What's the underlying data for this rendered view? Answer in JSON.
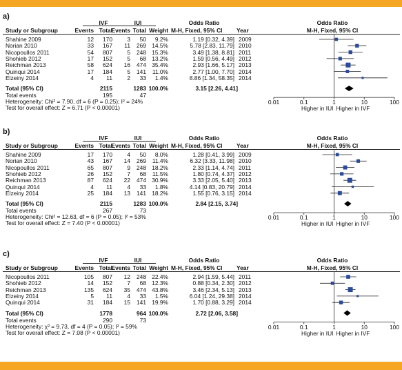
{
  "labels": {
    "ivf": "IVF",
    "iui": "IUI",
    "odds_ratio": "Odds Ratio",
    "study": "Study or Subgroup",
    "events": "Events",
    "total": "Total",
    "weight": "Weight",
    "method": "M-H, Fixed, 95% CI",
    "year": "Year",
    "total_events": "Total events",
    "higher_iui": "Higher in IUI",
    "higher_ivf": "Higher in IVF"
  },
  "colors": {
    "band": "#f5a623",
    "square": "#2a4a9b",
    "line": "#222222"
  },
  "chart_data": [
    {
      "type": "forest",
      "panel_label": "a)",
      "axis": {
        "scale": "log",
        "ticks": [
          "0.01",
          "0.1",
          "1",
          "10",
          "100"
        ],
        "ylim": [
          0.01,
          100
        ]
      },
      "studies": [
        {
          "name": "Shahine 2009",
          "ivf_events": "12",
          "ivf_total": "170",
          "iui_events": "3",
          "iui_total": "50",
          "weight": "9.2%",
          "ci_text": "1.19 [0.32, 4.39]",
          "year": "2009",
          "or": 1.19,
          "lo": 0.32,
          "hi": 4.39
        },
        {
          "name": "Norian 2010",
          "ivf_events": "33",
          "ivf_total": "167",
          "iui_events": "11",
          "iui_total": "269",
          "weight": "14.5%",
          "ci_text": "5.78 [2.83, 11.79]",
          "year": "2010",
          "or": 5.78,
          "lo": 2.83,
          "hi": 11.79
        },
        {
          "name": "Nicopoullos 2011",
          "ivf_events": "54",
          "ivf_total": "807",
          "iui_events": "5",
          "iui_total": "248",
          "weight": "15.3%",
          "ci_text": "3.49 [1.38, 8.81]",
          "year": "2011",
          "or": 3.49,
          "lo": 1.38,
          "hi": 8.81
        },
        {
          "name": "Shohieb 2012",
          "ivf_events": "17",
          "ivf_total": "152",
          "iui_events": "5",
          "iui_total": "68",
          "weight": "13.2%",
          "ci_text": "1.59 [0.56, 4.49]",
          "year": "2012",
          "or": 1.59,
          "lo": 0.56,
          "hi": 4.49
        },
        {
          "name": "Reichman 2013",
          "ivf_events": "58",
          "ivf_total": "624",
          "iui_events": "16",
          "iui_total": "474",
          "weight": "35.4%",
          "ci_text": "2.93 [1.66, 5.17]",
          "year": "2013",
          "or": 2.93,
          "lo": 1.66,
          "hi": 5.17
        },
        {
          "name": "Quinqui 2014",
          "ivf_events": "17",
          "ivf_total": "184",
          "iui_events": "5",
          "iui_total": "141",
          "weight": "11.0%",
          "ci_text": "2.77 [1.00, 7.70]",
          "year": "2014",
          "or": 2.77,
          "lo": 1.0,
          "hi": 7.7
        },
        {
          "name": "Elzeiny 2014",
          "ivf_events": "4",
          "ivf_total": "11",
          "iui_events": "2",
          "iui_total": "33",
          "weight": "1.4%",
          "ci_text": "8.86 [1.34, 58.35]",
          "year": "2014",
          "or": 8.86,
          "lo": 1.34,
          "hi": 58.35
        }
      ],
      "overall": {
        "label": "Total (95% CI)",
        "ivf_total": "2115",
        "iui_total": "1283",
        "weight": "100.0%",
        "ci_text": "3.15 [2.26, 4.41]",
        "or": 3.15,
        "lo": 2.26,
        "hi": 4.41
      },
      "total_events": {
        "ivf": "195",
        "iui": "47"
      },
      "heterogeneity": "Heterogeneity: Chi² = 7.90, df = 6 (P = 0.25); I² = 24%",
      "overall_effect": "Test for overall effect: Z = 6.71 (P < 0.00001)"
    },
    {
      "type": "forest",
      "panel_label": "b)",
      "axis": {
        "scale": "log",
        "ticks": [
          "0.01",
          "0.1",
          "1",
          "10",
          "100"
        ],
        "ylim": [
          0.01,
          100
        ]
      },
      "studies": [
        {
          "name": "Shahine 2009",
          "ivf_events": "17",
          "ivf_total": "170",
          "iui_events": "4",
          "iui_total": "50",
          "weight": "8.0%",
          "ci_text": "1.28 [0.41, 3.99]",
          "year": "2009",
          "or": 1.28,
          "lo": 0.41,
          "hi": 3.99
        },
        {
          "name": "Norian 2010",
          "ivf_events": "43",
          "ivf_total": "167",
          "iui_events": "14",
          "iui_total": "269",
          "weight": "11.4%",
          "ci_text": "6.32 [3.33, 11.98]",
          "year": "2010",
          "or": 6.32,
          "lo": 3.33,
          "hi": 11.98
        },
        {
          "name": "Nicopoullos 2011",
          "ivf_events": "65",
          "ivf_total": "807",
          "iui_events": "9",
          "iui_total": "248",
          "weight": "18.2%",
          "ci_text": "2.33 [1.14, 4.74]",
          "year": "2011",
          "or": 2.33,
          "lo": 1.14,
          "hi": 4.74
        },
        {
          "name": "Shohieb 2012",
          "ivf_events": "26",
          "ivf_total": "152",
          "iui_events": "7",
          "iui_total": "68",
          "weight": "11.5%",
          "ci_text": "1.80 [0.74, 4.37]",
          "year": "2012",
          "or": 1.8,
          "lo": 0.74,
          "hi": 4.37
        },
        {
          "name": "Reichman 2013",
          "ivf_events": "87",
          "ivf_total": "624",
          "iui_events": "22",
          "iui_total": "474",
          "weight": "30.9%",
          "ci_text": "3.33 [2.05, 5.40]",
          "year": "2013",
          "or": 3.33,
          "lo": 2.05,
          "hi": 5.4
        },
        {
          "name": "Quinqui 2014",
          "ivf_events": "4",
          "ivf_total": "11",
          "iui_events": "4",
          "iui_total": "33",
          "weight": "1.8%",
          "ci_text": "4.14 [0.83, 20.79]",
          "year": "2014",
          "or": 4.14,
          "lo": 0.83,
          "hi": 20.79
        },
        {
          "name": "Elzeiny 2014",
          "ivf_events": "25",
          "ivf_total": "184",
          "iui_events": "13",
          "iui_total": "141",
          "weight": "18.2%",
          "ci_text": "1.55 [0.76, 3.15]",
          "year": "2014",
          "or": 1.55,
          "lo": 0.76,
          "hi": 3.15
        }
      ],
      "overall": {
        "label": "Total (95% CI)",
        "ivf_total": "2115",
        "iui_total": "1283",
        "weight": "100.0%",
        "ci_text": "2.84 [2.15, 3.74]",
        "or": 2.84,
        "lo": 2.15,
        "hi": 3.74
      },
      "total_events": {
        "ivf": "267",
        "iui": "73"
      },
      "heterogeneity": "Heterogeneity: Chi² = 12.63, df = 6 (P = 0.05); I² = 53%",
      "overall_effect": "Test for overall effect: Z = 7.40 (P < 0.00001)"
    },
    {
      "type": "forest",
      "panel_label": "c)",
      "axis": {
        "scale": "log",
        "ticks": [
          "0.01",
          "0.1",
          "1",
          "10",
          "100"
        ],
        "ylim": [
          0.01,
          100
        ]
      },
      "studies": [
        {
          "name": "Nicopoullos 2011",
          "ivf_events": "105",
          "ivf_total": "807",
          "iui_events": "12",
          "iui_total": "248",
          "weight": "22.4%",
          "ci_text": "2.94 [1.59, 5.44]",
          "year": "2011",
          "or": 2.94,
          "lo": 1.59,
          "hi": 5.44
        },
        {
          "name": "Shohieb 2012",
          "ivf_events": "14",
          "ivf_total": "152",
          "iui_events": "7",
          "iui_total": "68",
          "weight": "12.3%",
          "ci_text": "0.88 [0.34, 2.30]",
          "year": "2012",
          "or": 0.88,
          "lo": 0.34,
          "hi": 2.3
        },
        {
          "name": "Reichman 2013",
          "ivf_events": "135",
          "ivf_total": "624",
          "iui_events": "35",
          "iui_total": "474",
          "weight": "43.8%",
          "ci_text": "3.46 [2.34, 5.13]",
          "year": "2013",
          "or": 3.46,
          "lo": 2.34,
          "hi": 5.13
        },
        {
          "name": "Elzeiny 2014",
          "ivf_events": "5",
          "ivf_total": "11",
          "iui_events": "4",
          "iui_total": "33",
          "weight": "1.5%",
          "ci_text": "6.04 [1.24, 29.38]",
          "year": "2014",
          "or": 6.04,
          "lo": 1.24,
          "hi": 29.38
        },
        {
          "name": "Quinqui 2014",
          "ivf_events": "31",
          "ivf_total": "184",
          "iui_events": "15",
          "iui_total": "141",
          "weight": "19.9%",
          "ci_text": "1.70 [0.88, 3.29]",
          "year": "2014",
          "or": 1.7,
          "lo": 0.88,
          "hi": 3.29
        }
      ],
      "overall": {
        "label": "Total (95% CI)",
        "ivf_total": "1778",
        "iui_total": "964",
        "weight": "100.0%",
        "ci_text": "2.72 [2.06, 3.58]",
        "or": 2.72,
        "lo": 2.06,
        "hi": 3.58
      },
      "total_events": {
        "ivf": "290",
        "iui": "73"
      },
      "heterogeneity": "Heterogeneity: χ² = 9.73, df = 4 (P = 0.05); I² = 59%",
      "overall_effect": "Test for overall effect: Z = 7.08 (P < 0.00001)"
    }
  ]
}
